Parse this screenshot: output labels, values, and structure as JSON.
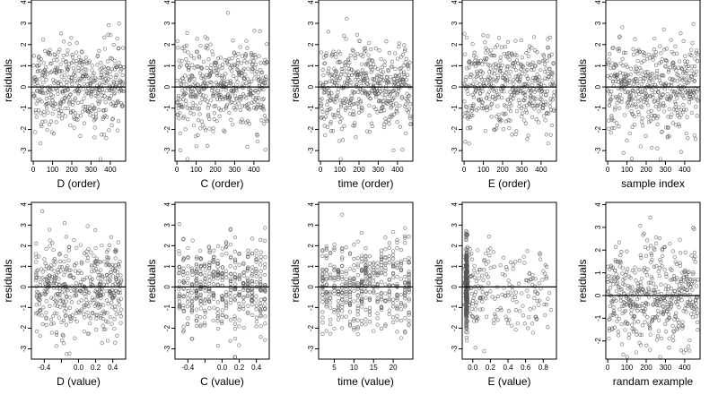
{
  "chart_data": [
    {
      "type": "scatter",
      "xlabel": "D (order)",
      "ylabel": "residuals",
      "xlim": [
        -10,
        480
      ],
      "ylim": [
        -3.5,
        4.1
      ],
      "xticks": [
        0,
        100,
        200,
        300,
        400
      ],
      "xtick_labels": [
        "0",
        "100",
        "200",
        "300",
        "400"
      ],
      "yticks": [
        -3,
        -2,
        -1,
        0,
        1,
        2,
        3,
        4
      ],
      "ytick_labels": [
        "-3",
        "-2",
        "-1",
        "0",
        "1",
        "2",
        "3",
        "4"
      ],
      "hline": 0,
      "x_dist": {
        "kind": "index",
        "n": 470
      },
      "points": []
    },
    {
      "type": "scatter",
      "xlabel": "C (order)",
      "ylabel": "residuals",
      "xlim": [
        -10,
        480
      ],
      "ylim": [
        -3.5,
        4.1
      ],
      "xticks": [
        0,
        100,
        200,
        300,
        400
      ],
      "xtick_labels": [
        "0",
        "100",
        "200",
        "300",
        "400"
      ],
      "yticks": [
        -3,
        -2,
        -1,
        0,
        1,
        2,
        3,
        4
      ],
      "ytick_labels": [
        "-3",
        "-2",
        "-1",
        "0",
        "1",
        "2",
        "3",
        "4"
      ],
      "hline": 0,
      "x_dist": {
        "kind": "index",
        "n": 470
      },
      "points": []
    },
    {
      "type": "scatter",
      "xlabel": "time (order)",
      "ylabel": "residuals",
      "xlim": [
        -10,
        480
      ],
      "ylim": [
        -3.5,
        4.1
      ],
      "xticks": [
        0,
        100,
        200,
        300,
        400
      ],
      "xtick_labels": [
        "0",
        "100",
        "200",
        "300",
        "400"
      ],
      "yticks": [
        -3,
        -2,
        -1,
        0,
        1,
        2,
        3,
        4
      ],
      "ytick_labels": [
        "-3",
        "-2",
        "-1",
        "0",
        "1",
        "2",
        "3",
        "4"
      ],
      "hline": 0,
      "x_dist": {
        "kind": "index",
        "n": 470
      },
      "points": []
    },
    {
      "type": "scatter",
      "xlabel": "E (order)",
      "ylabel": "residuals",
      "xlim": [
        -10,
        480
      ],
      "ylim": [
        -3.5,
        4.1
      ],
      "xticks": [
        0,
        100,
        200,
        300,
        400
      ],
      "xtick_labels": [
        "0",
        "100",
        "200",
        "300",
        "400"
      ],
      "yticks": [
        -3,
        -2,
        -1,
        0,
        1,
        2,
        3,
        4
      ],
      "ytick_labels": [
        "-3",
        "-2",
        "-1",
        "0",
        "1",
        "2",
        "3",
        "4"
      ],
      "hline": 0,
      "x_dist": {
        "kind": "index",
        "n": 470
      },
      "points": []
    },
    {
      "type": "scatter",
      "xlabel": "sample index",
      "ylabel": "residuals",
      "xlim": [
        -10,
        480
      ],
      "ylim": [
        -3.5,
        4.1
      ],
      "xticks": [
        0,
        100,
        200,
        300,
        400
      ],
      "xtick_labels": [
        "0",
        "100",
        "200",
        "300",
        "400"
      ],
      "yticks": [
        -3,
        -2,
        -1,
        0,
        1,
        2,
        3,
        4
      ],
      "ytick_labels": [
        "-3",
        "-2",
        "-1",
        "0",
        "1",
        "2",
        "3",
        "4"
      ],
      "hline": 0,
      "x_dist": {
        "kind": "index",
        "n": 470
      },
      "points": []
    },
    {
      "type": "scatter",
      "xlabel": "D (value)",
      "ylabel": "residuals",
      "xlim": [
        -0.55,
        0.55
      ],
      "ylim": [
        -3.5,
        4.1
      ],
      "xticks": [
        -0.4,
        -0.2,
        0.0,
        0.2,
        0.4
      ],
      "xtick_labels": [
        "-0.4",
        "",
        "0.0",
        "0.2",
        "0.4"
      ],
      "yticks": [
        -3,
        -2,
        -1,
        0,
        1,
        2,
        3,
        4
      ],
      "ytick_labels": [
        "-3",
        "-2",
        "-1",
        "0",
        "1",
        "2",
        "3",
        "4"
      ],
      "hline": 0,
      "x_dist": {
        "kind": "uniform",
        "range": [
          -0.5,
          0.5
        ],
        "n": 470
      },
      "points": []
    },
    {
      "type": "scatter",
      "xlabel": "C (value)",
      "ylabel": "residuals",
      "xlim": [
        -0.55,
        0.55
      ],
      "ylim": [
        -3.5,
        4.1
      ],
      "xticks": [
        -0.4,
        -0.2,
        0.0,
        0.2,
        0.4
      ],
      "xtick_labels": [
        "-0.4",
        "",
        "0.0",
        "0.2",
        "0.4"
      ],
      "yticks": [
        -3,
        -2,
        -1,
        0,
        1,
        2,
        3,
        4
      ],
      "ytick_labels": [
        "-3",
        "-2",
        "-1",
        "0",
        "1",
        "2",
        "3",
        "4"
      ],
      "hline": 0,
      "x_dist": {
        "kind": "columns",
        "values": [
          -0.5,
          -0.45,
          -0.4,
          -0.35,
          -0.3,
          -0.25,
          -0.2,
          -0.15,
          -0.1,
          -0.05,
          0.0,
          0.05,
          0.1,
          0.15,
          0.2,
          0.25,
          0.3,
          0.35,
          0.4,
          0.45,
          0.5
        ],
        "n": 470
      },
      "points": []
    },
    {
      "type": "scatter",
      "xlabel": "time (value)",
      "ylabel": "residuals",
      "xlim": [
        1,
        25
      ],
      "ylim": [
        -3.5,
        4.1
      ],
      "xticks": [
        5,
        10,
        15,
        20
      ],
      "xtick_labels": [
        "5",
        "10",
        "15",
        "20"
      ],
      "yticks": [
        -3,
        -2,
        -1,
        0,
        1,
        2,
        3,
        4
      ],
      "ytick_labels": [
        "-3",
        "-2",
        "-1",
        "0",
        "1",
        "2",
        "3",
        "4"
      ],
      "hline": 0,
      "x_dist": {
        "kind": "columns",
        "values": [
          2,
          3,
          4,
          5,
          6,
          7,
          8,
          9,
          10,
          11,
          12,
          13,
          14,
          15,
          16,
          17,
          18,
          19,
          20,
          21,
          22,
          23,
          24
        ],
        "n": 470
      },
      "points": []
    },
    {
      "type": "scatter",
      "xlabel": "E (value)",
      "ylabel": "residuals",
      "xlim": [
        -0.12,
        0.95
      ],
      "ylim": [
        -3.5,
        4.1
      ],
      "xticks": [
        0.0,
        0.2,
        0.4,
        0.6,
        0.8
      ],
      "xtick_labels": [
        "0.0",
        "0.2",
        "0.4",
        "0.6",
        "0.8"
      ],
      "yticks": [
        -3,
        -2,
        -1,
        0,
        1,
        2,
        3,
        4
      ],
      "ytick_labels": [
        "-3",
        "-2",
        "-1",
        "0",
        "1",
        "2",
        "3",
        "4"
      ],
      "hline": 0,
      "x_dist": {
        "kind": "skewed",
        "range": [
          -0.1,
          0.9
        ],
        "n": 470
      },
      "points": []
    },
    {
      "type": "scatter",
      "xlabel": "randam example",
      "ylabel": "residuals",
      "xlim": [
        -10,
        480
      ],
      "ylim": [
        -2.8,
        4.1
      ],
      "xticks": [
        0,
        100,
        200,
        300,
        400
      ],
      "xtick_labels": [
        "0",
        "100",
        "200",
        "300",
        "400"
      ],
      "yticks": [
        -2,
        -1,
        0,
        1,
        2,
        3,
        4
      ],
      "ytick_labels": [
        "-2",
        "-1",
        "0",
        "1",
        "2",
        "3",
        "4"
      ],
      "hline": 0,
      "x_dist": {
        "kind": "index",
        "n": 470
      },
      "points": []
    }
  ]
}
